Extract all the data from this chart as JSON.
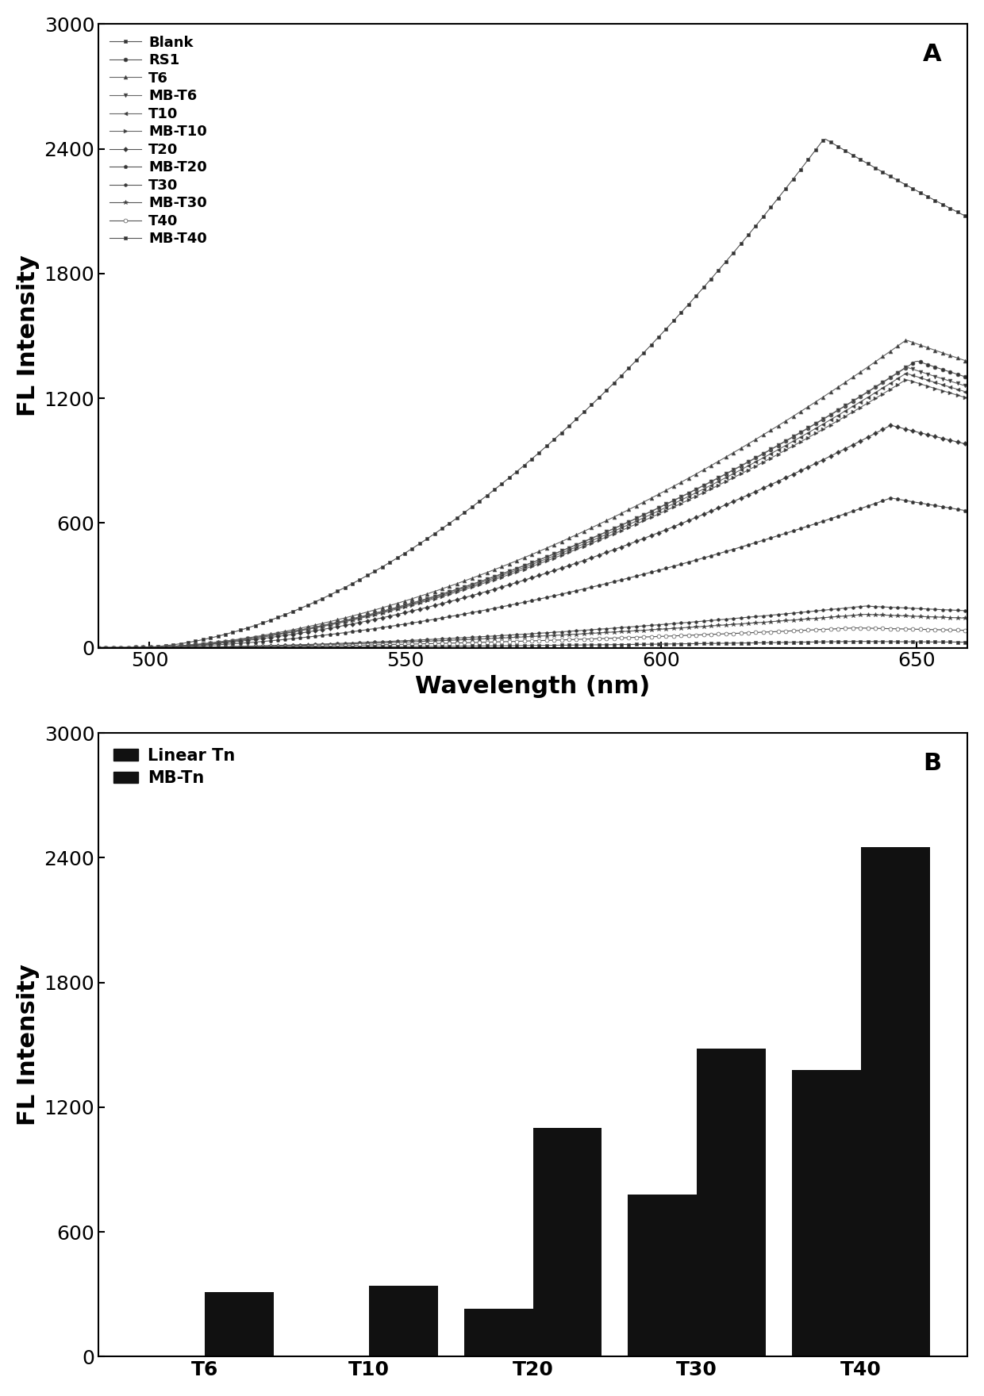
{
  "panel_A": {
    "title_label": "A",
    "xlabel": "Wavelength (nm)",
    "ylabel": "FL Intensity",
    "xlim": [
      490,
      660
    ],
    "ylim": [
      0,
      3000
    ],
    "xticks": [
      500,
      550,
      600,
      650
    ],
    "yticks": [
      0,
      600,
      1200,
      1800,
      2400,
      3000
    ],
    "series": [
      {
        "label": "Blank",
        "marker": "s",
        "peak": 2450,
        "peak_x": 632,
        "line_color": "#555555",
        "mfc": "#333333",
        "ms": 3.5
      },
      {
        "label": "RS1",
        "marker": "o",
        "peak": 1380,
        "peak_x": 650,
        "line_color": "#555555",
        "mfc": "#333333",
        "ms": 3.5
      },
      {
        "label": "T6",
        "marker": "^",
        "peak": 1480,
        "peak_x": 648,
        "line_color": "#666666",
        "mfc": "#333333",
        "ms": 3.5
      },
      {
        "label": "MB-T6",
        "marker": "v",
        "peak": 1350,
        "peak_x": 648,
        "line_color": "#666666",
        "mfc": "#333333",
        "ms": 3.5
      },
      {
        "label": "T10",
        "marker": "<",
        "peak": 1320,
        "peak_x": 648,
        "line_color": "#666666",
        "mfc": "#333333",
        "ms": 3.5
      },
      {
        "label": "MB-T10",
        "marker": ">",
        "peak": 1290,
        "peak_x": 648,
        "line_color": "#666666",
        "mfc": "#333333",
        "ms": 3.5
      },
      {
        "label": "T20",
        "marker": "D",
        "peak": 1070,
        "peak_x": 645,
        "line_color": "#555555",
        "mfc": "#333333",
        "ms": 3.0
      },
      {
        "label": "MB-T20",
        "marker": "p",
        "peak": 720,
        "peak_x": 645,
        "line_color": "#555555",
        "mfc": "#333333",
        "ms": 3.5
      },
      {
        "label": "T30",
        "marker": "h",
        "peak": 200,
        "peak_x": 640,
        "line_color": "#555555",
        "mfc": "#333333",
        "ms": 3.0
      },
      {
        "label": "MB-T30",
        "marker": "*",
        "peak": 160,
        "peak_x": 640,
        "line_color": "#555555",
        "mfc": "#333333",
        "ms": 4.0
      },
      {
        "label": "T40",
        "marker": "o",
        "peak": 95,
        "peak_x": 638,
        "line_color": "#555555",
        "mfc": "white",
        "ms": 3.5
      },
      {
        "label": "MB-T40",
        "marker": "s",
        "peak": 30,
        "peak_x": 638,
        "line_color": "#555555",
        "mfc": "#333333",
        "ms": 3.0
      }
    ]
  },
  "panel_B": {
    "title_label": "B",
    "ylabel": "FL Intensity",
    "ylim": [
      0,
      3000
    ],
    "yticks": [
      0,
      600,
      1200,
      1800,
      2400,
      3000
    ],
    "categories": [
      "T6",
      "T10",
      "T20",
      "T30",
      "T40"
    ],
    "linear_values": [
      5,
      5,
      230,
      780,
      1380
    ],
    "mb_values": [
      310,
      340,
      1100,
      1480,
      2450
    ],
    "bar_color": "#111111",
    "legend_labels": [
      "Linear Tn",
      "MB-Tn"
    ]
  }
}
